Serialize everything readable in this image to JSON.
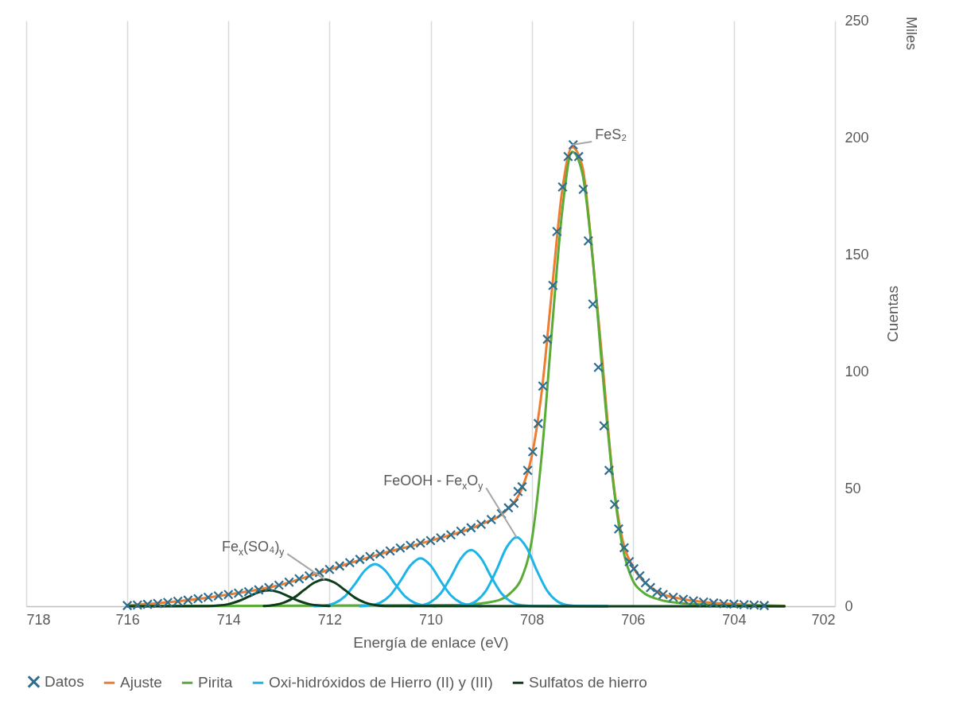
{
  "chart_data": {
    "type": "line",
    "xlabel": "Energía de enlace (eV)",
    "ylabel": "Cuentas",
    "xlim": [
      718,
      702
    ],
    "xticks": [
      718,
      716,
      714,
      712,
      710,
      708,
      706,
      704,
      702
    ],
    "ylim": [
      0,
      250
    ],
    "yticks": [
      0,
      50,
      100,
      150,
      200,
      250
    ],
    "grid": "x",
    "legend": "bottom",
    "annotations": [
      "Miles",
      {
        "text": "FeS₂",
        "x": 707.2,
        "y": 197
      },
      {
        "text": "FeOOH - Fe$_{x}$O$_{y}$",
        "x": 708.3,
        "y": 29.5
      },
      {
        "text": "Fe$_{x}$(SO₄)$_{y}$",
        "x": 712.1,
        "y": 11.5
      }
    ],
    "series": [
      {
        "name": "Datos",
        "type": "scatter",
        "marker": "cross",
        "color": "#2e6e8e",
        "x": [
          716.0,
          715.8,
          715.6,
          715.4,
          715.2,
          715.0,
          714.8,
          714.6,
          714.4,
          714.2,
          714.0,
          713.8,
          713.6,
          713.4,
          713.2,
          713.0,
          712.8,
          712.6,
          712.4,
          712.2,
          712.0,
          711.8,
          711.6,
          711.4,
          711.2,
          711.0,
          710.8,
          710.6,
          710.4,
          710.2,
          710.0,
          709.8,
          709.6,
          709.4,
          709.2,
          709.0,
          708.8,
          708.6,
          708.46,
          708.35,
          708.27,
          708.19,
          708.08,
          707.98,
          707.87,
          707.78,
          707.69,
          707.58,
          707.5,
          707.39,
          707.28,
          707.18,
          707.07,
          706.98,
          706.88,
          706.79,
          706.68,
          706.57,
          706.47,
          706.36,
          706.28,
          706.17,
          706.07,
          705.98,
          705.86,
          705.75,
          705.65,
          705.52,
          705.4,
          705.2,
          705.0,
          704.8,
          704.6,
          704.4,
          704.2,
          704.0,
          703.8,
          703.6,
          703.4
        ],
        "values": [
          0.3,
          0.5,
          0.8,
          1.2,
          1.6,
          2.1,
          2.6,
          3.2,
          3.8,
          4.4,
          5.0,
          5.6,
          6.2,
          7.0,
          8.0,
          9.0,
          10.3,
          11.7,
          13.0,
          14.4,
          15.7,
          17.2,
          18.6,
          20.0,
          21.2,
          22.3,
          23.6,
          24.9,
          26.0,
          27.0,
          28.0,
          29.2,
          30.5,
          32.0,
          33.5,
          35.0,
          37.0,
          39.5,
          42,
          44,
          49,
          51,
          58,
          66,
          78,
          94,
          114,
          137,
          160,
          179,
          192,
          197,
          192,
          178,
          156,
          129,
          102,
          77,
          58,
          43.5,
          33,
          25,
          19,
          16,
          13,
          10,
          8,
          6,
          5,
          3.8,
          3,
          2.3,
          1.8,
          1.4,
          1.1,
          0.9,
          0.7,
          0.5,
          0.3
        ]
      },
      {
        "name": "Ajuste",
        "color": "#ed7d31",
        "x": [
          716,
          715,
          714,
          713,
          712,
          711,
          710,
          709,
          708.5,
          708.2,
          708.0,
          707.8,
          707.6,
          707.4,
          707.2,
          707.0,
          706.8,
          706.6,
          706.4,
          706.2,
          706.0,
          705.8,
          705.5,
          705,
          704,
          703
        ],
        "values": [
          0.3,
          2.1,
          5.0,
          9.0,
          15.7,
          22.3,
          28.0,
          35.0,
          41,
          50,
          64,
          92,
          135,
          177,
          196,
          188,
          150,
          104,
          56,
          28,
          17,
          11,
          6,
          3,
          0.9,
          0.2
        ]
      },
      {
        "name": "Pirita",
        "color": "#5bab38",
        "x": [
          716,
          709.5,
          709,
          708.6,
          708.4,
          708.2,
          708,
          707.8,
          707.6,
          707.4,
          707.2,
          707.0,
          706.8,
          706.6,
          706.4,
          706.2,
          706.0,
          705.8,
          705.5,
          705,
          704,
          703
        ],
        "values": [
          0,
          0.5,
          1.2,
          3,
          6,
          12,
          28,
          65,
          118,
          168,
          194,
          185,
          150,
          100,
          55,
          25,
          11,
          6,
          3,
          1.2,
          0.3,
          0
        ]
      },
      {
        "name": "Oxi-hidróxidos de Hierro (II) y (III)",
        "color": "#1db4e8",
        "x": [
          712.3,
          712.1,
          711.9,
          711.7,
          711.5,
          711.3,
          711.1,
          710.9,
          710.7,
          710.5,
          710.3,
          710.1,
          709.9
        ],
        "values": [
          0,
          0.3,
          1.3,
          4.1,
          9.4,
          15.3,
          18,
          15.3,
          9.4,
          4.1,
          1.3,
          0.3,
          0
        ]
      },
      {
        "color": "#1db4e8",
        "x": [
          711.4,
          711.2,
          711.0,
          710.8,
          710.6,
          710.4,
          710.2,
          710.0,
          709.8,
          709.6,
          709.4,
          709.2,
          709.0
        ],
        "values": [
          0,
          0.4,
          1.5,
          4.7,
          10.7,
          17.4,
          20.5,
          17.4,
          10.7,
          4.7,
          1.5,
          0.4,
          0
        ]
      },
      {
        "color": "#1db4e8",
        "x": [
          710.4,
          710.2,
          710.0,
          709.8,
          709.6,
          709.4,
          709.2,
          709.0,
          708.8,
          708.6,
          708.4,
          708.2,
          708.0,
          707.4,
          706.5
        ],
        "values": [
          0,
          0.4,
          1.8,
          5.5,
          12.5,
          20.4,
          24,
          20.4,
          12.5,
          5.5,
          1.8,
          0.4,
          0.1,
          0,
          0
        ]
      },
      {
        "color": "#1db4e8",
        "x": [
          709.5,
          709.3,
          709.1,
          708.9,
          708.7,
          708.5,
          708.3,
          708.1,
          707.9,
          707.7,
          707.5,
          707.3,
          707.1,
          706.5
        ],
        "values": [
          0.1,
          0.5,
          2.2,
          6.8,
          15.3,
          25.0,
          29.5,
          25.0,
          15.3,
          6.8,
          2.2,
          0.5,
          0.1,
          0
        ]
      },
      {
        "name": "Sulfatos de hierro",
        "color": "#0e3d1c",
        "x": [
          716,
          714.4,
          714.2,
          714.0,
          713.8,
          713.6,
          713.4,
          713.2,
          713.0,
          712.8,
          712.6,
          712.4,
          712.2,
          712.0
        ],
        "values": [
          0,
          0.1,
          0.3,
          0.9,
          2.2,
          4.1,
          6.0,
          6.8,
          6.0,
          4.1,
          2.2,
          0.9,
          0.3,
          0.1
        ]
      },
      {
        "color": "#0e3d1c",
        "x": [
          713.3,
          713.1,
          712.9,
          712.7,
          712.5,
          712.3,
          712.1,
          711.9,
          711.7,
          711.5,
          711.3,
          711.1,
          710.9,
          703
        ],
        "values": [
          0.1,
          0.5,
          1.6,
          3.7,
          7.0,
          10.1,
          11.5,
          10.1,
          7.0,
          3.7,
          1.6,
          0.5,
          0.1,
          0
        ]
      }
    ]
  }
}
